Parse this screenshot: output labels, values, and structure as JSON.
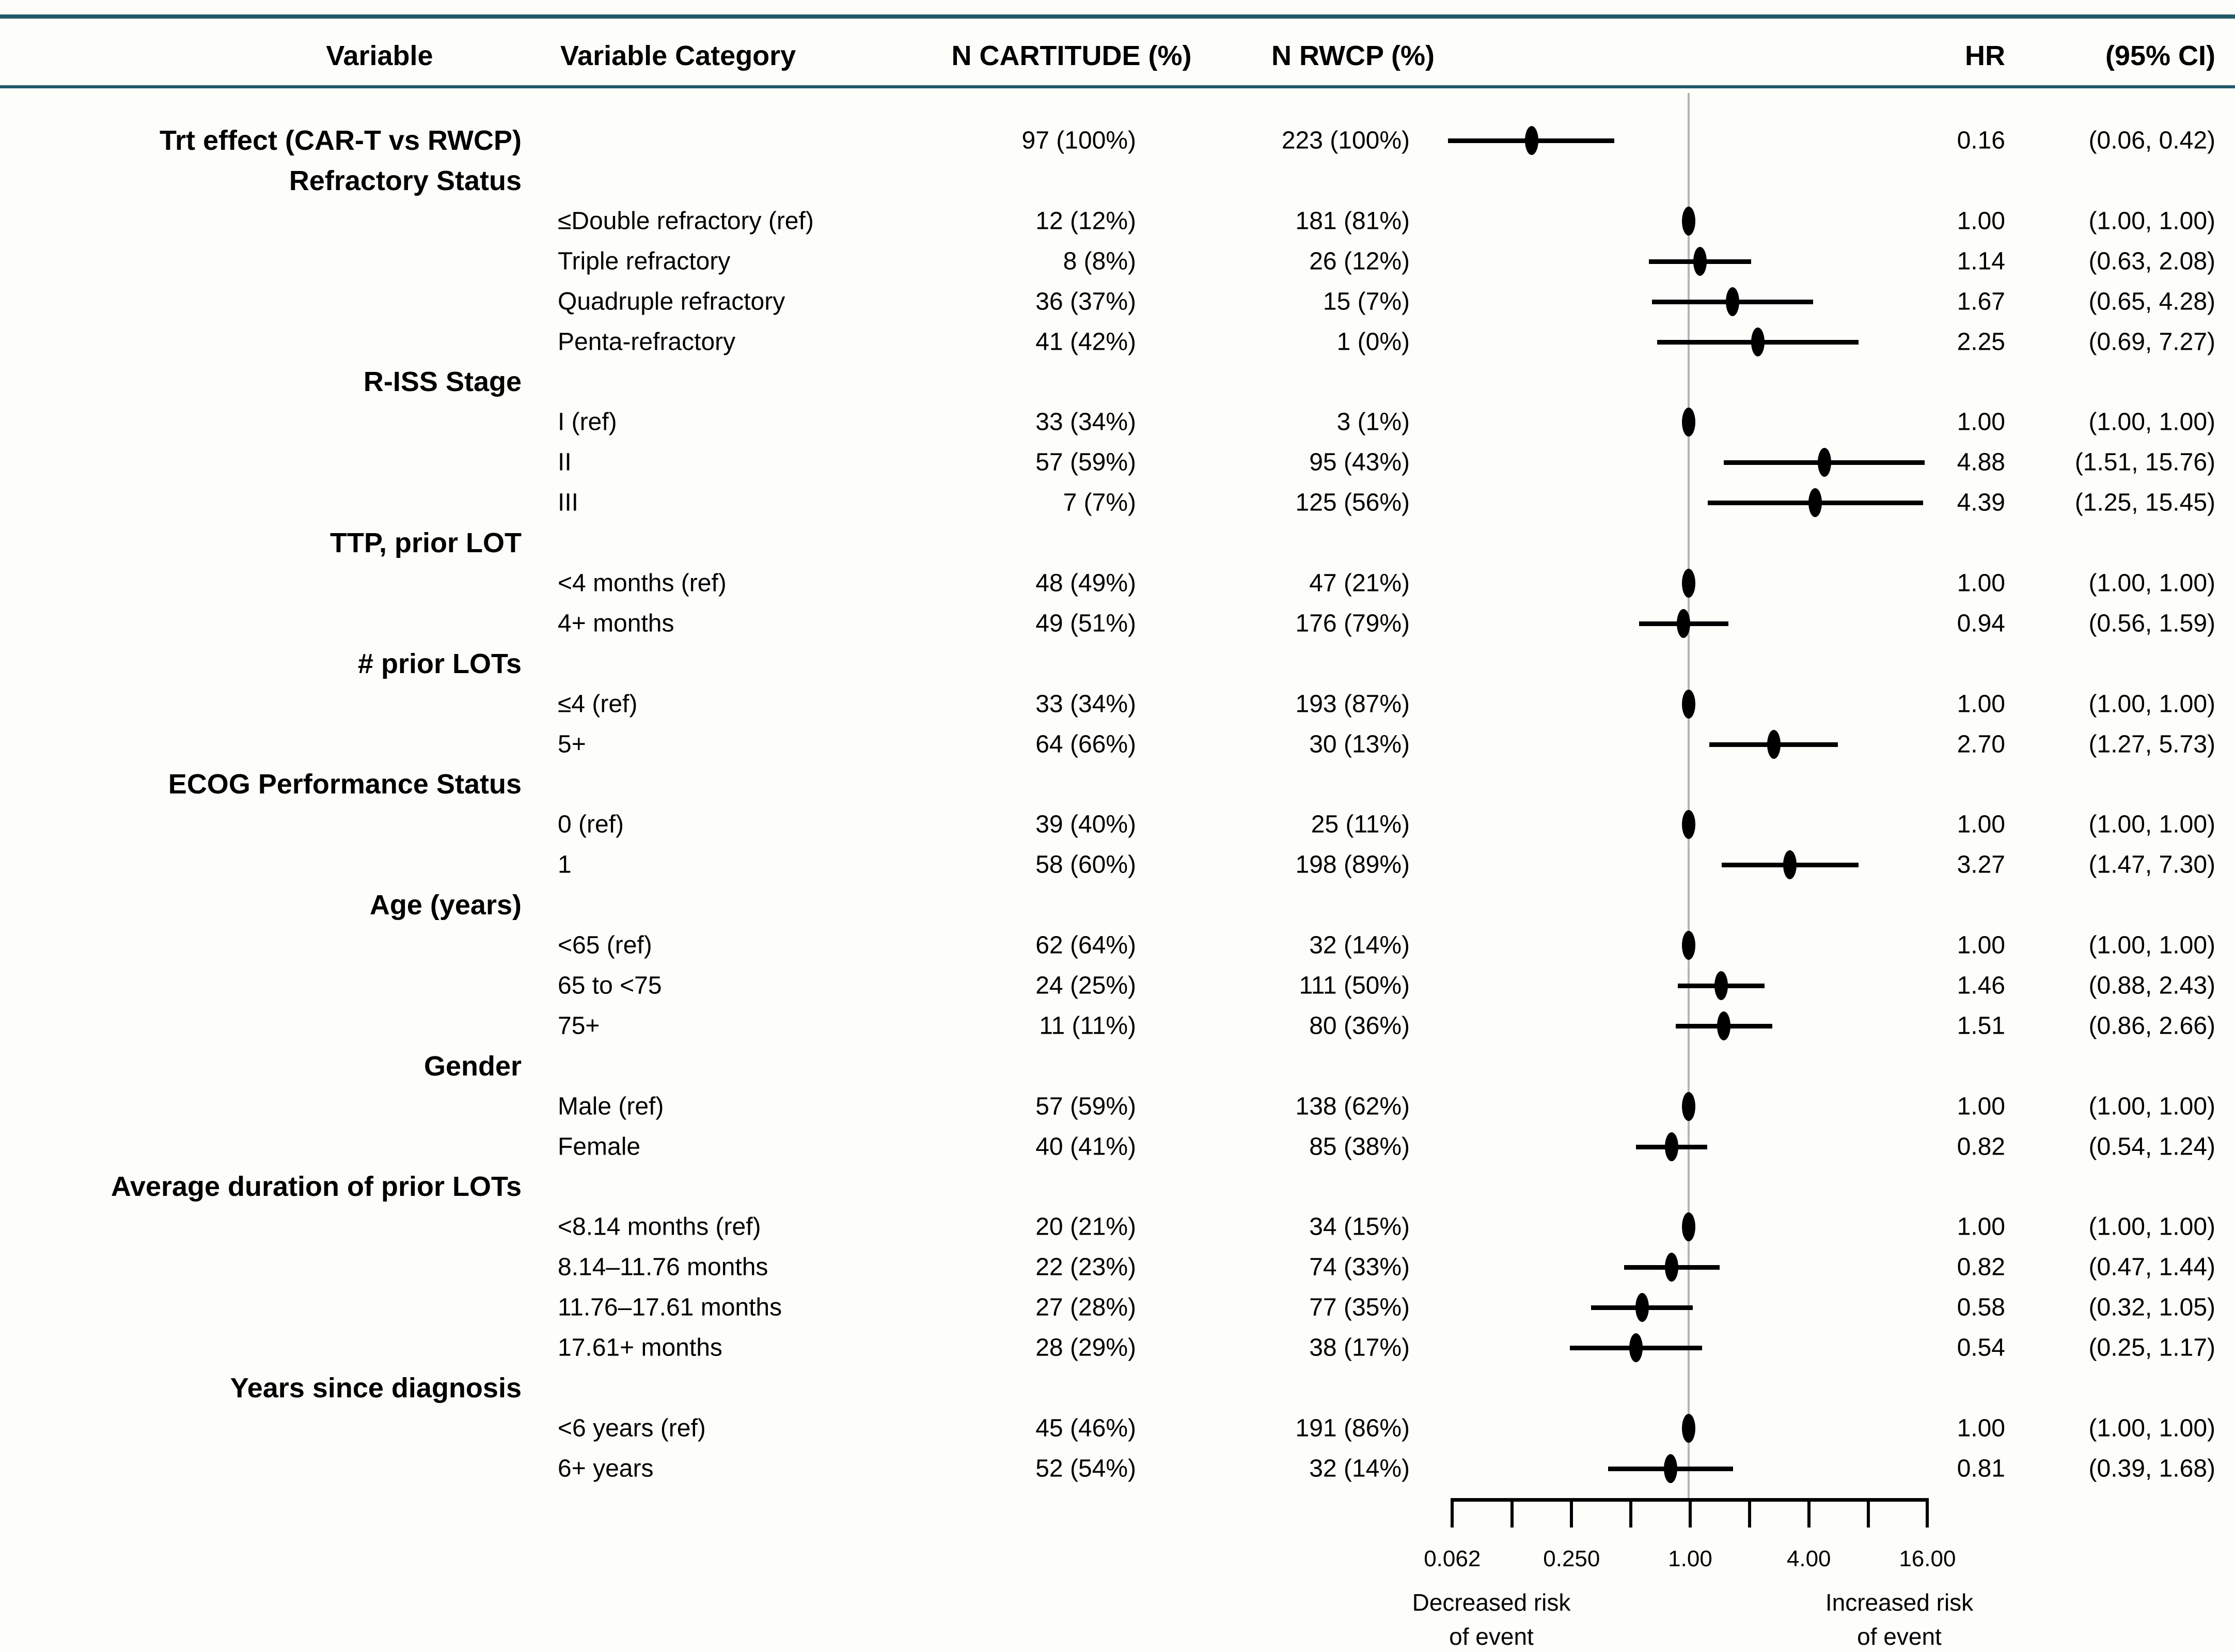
{
  "header": {
    "col_variable": "Variable",
    "col_variable_category": "Variable Category",
    "col_n_cartitude": "N CARTITUDE (%)",
    "col_n_rwcp": "N RWCP (%)",
    "col_hr": "HR",
    "col_ci": "(95% CI)"
  },
  "colors": {
    "rule": "#235968",
    "text": "#000000",
    "marker": "#000000",
    "reference_line": "#b5b5b5",
    "background": "#fdfdfa"
  },
  "chart_data": {
    "type": "forest",
    "x_scale": "log2",
    "x_range": [
      0.062,
      16.0
    ],
    "reference_value": 1.0,
    "axis_ticks": [
      0.062,
      0.125,
      0.25,
      0.5,
      1.0,
      2.0,
      4.0,
      8.0,
      16.0
    ],
    "labeled_ticks": [
      {
        "value": 0.062,
        "label": "0.062"
      },
      {
        "value": 0.25,
        "label": "0.250"
      },
      {
        "value": 1.0,
        "label": "1.00"
      },
      {
        "value": 4.0,
        "label": "4.00"
      },
      {
        "value": 16.0,
        "label": "16.00"
      }
    ],
    "left_axis_label": [
      "Decreased risk",
      "of event"
    ],
    "right_axis_label": [
      "Increased risk",
      "of event"
    ],
    "rows": [
      {
        "group": false,
        "variable": "Trt effect (CAR-T vs RWCP)",
        "category": "",
        "n_cartitude": "97 (100%)",
        "n_rwcp": "223 (100%)",
        "hr": 0.16,
        "ci_low": 0.06,
        "ci_high": 0.42,
        "hr_label": "0.16",
        "ci_label": "(0.06, 0.42)"
      },
      {
        "group": true,
        "variable": "Refractory Status"
      },
      {
        "group": false,
        "category": "≤Double refractory (ref)",
        "n_cartitude": "12 (12%)",
        "n_rwcp": "181 (81%)",
        "hr": 1.0,
        "ci_low": 1.0,
        "ci_high": 1.0,
        "hr_label": "1.00",
        "ci_label": "(1.00, 1.00)"
      },
      {
        "group": false,
        "category": "Triple refractory",
        "n_cartitude": "8 (8%)",
        "n_rwcp": "26 (12%)",
        "hr": 1.14,
        "ci_low": 0.63,
        "ci_high": 2.08,
        "hr_label": "1.14",
        "ci_label": "(0.63, 2.08)"
      },
      {
        "group": false,
        "category": "Quadruple refractory",
        "n_cartitude": "36 (37%)",
        "n_rwcp": "15 (7%)",
        "hr": 1.67,
        "ci_low": 0.65,
        "ci_high": 4.28,
        "hr_label": "1.67",
        "ci_label": "(0.65, 4.28)"
      },
      {
        "group": false,
        "category": "Penta-refractory",
        "n_cartitude": "41 (42%)",
        "n_rwcp": "1 (0%)",
        "hr": 2.25,
        "ci_low": 0.69,
        "ci_high": 7.27,
        "hr_label": "2.25",
        "ci_label": "(0.69, 7.27)"
      },
      {
        "group": true,
        "variable": "R-ISS Stage"
      },
      {
        "group": false,
        "category": "I (ref)",
        "n_cartitude": "33 (34%)",
        "n_rwcp": "3 (1%)",
        "hr": 1.0,
        "ci_low": 1.0,
        "ci_high": 1.0,
        "hr_label": "1.00",
        "ci_label": "(1.00, 1.00)"
      },
      {
        "group": false,
        "category": "II",
        "n_cartitude": "57 (59%)",
        "n_rwcp": "95 (43%)",
        "hr": 4.88,
        "ci_low": 1.51,
        "ci_high": 15.76,
        "hr_label": "4.88",
        "ci_label": "(1.51, 15.76)"
      },
      {
        "group": false,
        "category": "III",
        "n_cartitude": "7 (7%)",
        "n_rwcp": "125 (56%)",
        "hr": 4.39,
        "ci_low": 1.25,
        "ci_high": 15.45,
        "hr_label": "4.39",
        "ci_label": "(1.25, 15.45)"
      },
      {
        "group": true,
        "variable": "TTP, prior LOT"
      },
      {
        "group": false,
        "category": "<4 months (ref)",
        "n_cartitude": "48 (49%)",
        "n_rwcp": "47 (21%)",
        "hr": 1.0,
        "ci_low": 1.0,
        "ci_high": 1.0,
        "hr_label": "1.00",
        "ci_label": "(1.00, 1.00)"
      },
      {
        "group": false,
        "category": "4+ months",
        "n_cartitude": "49 (51%)",
        "n_rwcp": "176 (79%)",
        "hr": 0.94,
        "ci_low": 0.56,
        "ci_high": 1.59,
        "hr_label": "0.94",
        "ci_label": "(0.56, 1.59)"
      },
      {
        "group": true,
        "variable": "# prior LOTs"
      },
      {
        "group": false,
        "category": "≤4 (ref)",
        "n_cartitude": "33 (34%)",
        "n_rwcp": "193 (87%)",
        "hr": 1.0,
        "ci_low": 1.0,
        "ci_high": 1.0,
        "hr_label": "1.00",
        "ci_label": "(1.00, 1.00)"
      },
      {
        "group": false,
        "category": "5+",
        "n_cartitude": "64 (66%)",
        "n_rwcp": "30 (13%)",
        "hr": 2.7,
        "ci_low": 1.27,
        "ci_high": 5.73,
        "hr_label": "2.70",
        "ci_label": "(1.27, 5.73)"
      },
      {
        "group": true,
        "variable": "ECOG Performance Status"
      },
      {
        "group": false,
        "category": "0 (ref)",
        "n_cartitude": "39 (40%)",
        "n_rwcp": "25 (11%)",
        "hr": 1.0,
        "ci_low": 1.0,
        "ci_high": 1.0,
        "hr_label": "1.00",
        "ci_label": "(1.00, 1.00)"
      },
      {
        "group": false,
        "category": "1",
        "n_cartitude": "58 (60%)",
        "n_rwcp": "198 (89%)",
        "hr": 3.27,
        "ci_low": 1.47,
        "ci_high": 7.3,
        "hr_label": "3.27",
        "ci_label": "(1.47, 7.30)"
      },
      {
        "group": true,
        "variable": "Age (years)"
      },
      {
        "group": false,
        "category": "<65 (ref)",
        "n_cartitude": "62 (64%)",
        "n_rwcp": "32 (14%)",
        "hr": 1.0,
        "ci_low": 1.0,
        "ci_high": 1.0,
        "hr_label": "1.00",
        "ci_label": "(1.00, 1.00)"
      },
      {
        "group": false,
        "category": "65 to <75",
        "n_cartitude": "24 (25%)",
        "n_rwcp": "111 (50%)",
        "hr": 1.46,
        "ci_low": 0.88,
        "ci_high": 2.43,
        "hr_label": "1.46",
        "ci_label": "(0.88, 2.43)"
      },
      {
        "group": false,
        "category": "75+",
        "n_cartitude": "11 (11%)",
        "n_rwcp": "80 (36%)",
        "hr": 1.51,
        "ci_low": 0.86,
        "ci_high": 2.66,
        "hr_label": "1.51",
        "ci_label": "(0.86, 2.66)"
      },
      {
        "group": true,
        "variable": "Gender"
      },
      {
        "group": false,
        "category": "Male (ref)",
        "n_cartitude": "57 (59%)",
        "n_rwcp": "138 (62%)",
        "hr": 1.0,
        "ci_low": 1.0,
        "ci_high": 1.0,
        "hr_label": "1.00",
        "ci_label": "(1.00, 1.00)"
      },
      {
        "group": false,
        "category": "Female",
        "n_cartitude": "40 (41%)",
        "n_rwcp": "85 (38%)",
        "hr": 0.82,
        "ci_low": 0.54,
        "ci_high": 1.24,
        "hr_label": "0.82",
        "ci_label": "(0.54, 1.24)"
      },
      {
        "group": true,
        "variable": "Average duration of prior LOTs"
      },
      {
        "group": false,
        "category": "<8.14 months (ref)",
        "n_cartitude": "20 (21%)",
        "n_rwcp": "34 (15%)",
        "hr": 1.0,
        "ci_low": 1.0,
        "ci_high": 1.0,
        "hr_label": "1.00",
        "ci_label": "(1.00, 1.00)"
      },
      {
        "group": false,
        "category": "8.14–11.76 months",
        "n_cartitude": "22 (23%)",
        "n_rwcp": "74 (33%)",
        "hr": 0.82,
        "ci_low": 0.47,
        "ci_high": 1.44,
        "hr_label": "0.82",
        "ci_label": "(0.47, 1.44)"
      },
      {
        "group": false,
        "category": "11.76–17.61 months",
        "n_cartitude": "27 (28%)",
        "n_rwcp": "77 (35%)",
        "hr": 0.58,
        "ci_low": 0.32,
        "ci_high": 1.05,
        "hr_label": "0.58",
        "ci_label": "(0.32, 1.05)"
      },
      {
        "group": false,
        "category": "17.61+ months",
        "n_cartitude": "28 (29%)",
        "n_rwcp": "38 (17%)",
        "hr": 0.54,
        "ci_low": 0.25,
        "ci_high": 1.17,
        "hr_label": "0.54",
        "ci_label": "(0.25, 1.17)"
      },
      {
        "group": true,
        "variable": "Years since diagnosis"
      },
      {
        "group": false,
        "category": "<6 years (ref)",
        "n_cartitude": "45 (46%)",
        "n_rwcp": "191 (86%)",
        "hr": 1.0,
        "ci_low": 1.0,
        "ci_high": 1.0,
        "hr_label": "1.00",
        "ci_label": "(1.00, 1.00)"
      },
      {
        "group": false,
        "category": "6+ years",
        "n_cartitude": "52 (54%)",
        "n_rwcp": "32 (14%)",
        "hr": 0.81,
        "ci_low": 0.39,
        "ci_high": 1.68,
        "hr_label": "0.81",
        "ci_label": "(0.39, 1.68)"
      }
    ]
  }
}
